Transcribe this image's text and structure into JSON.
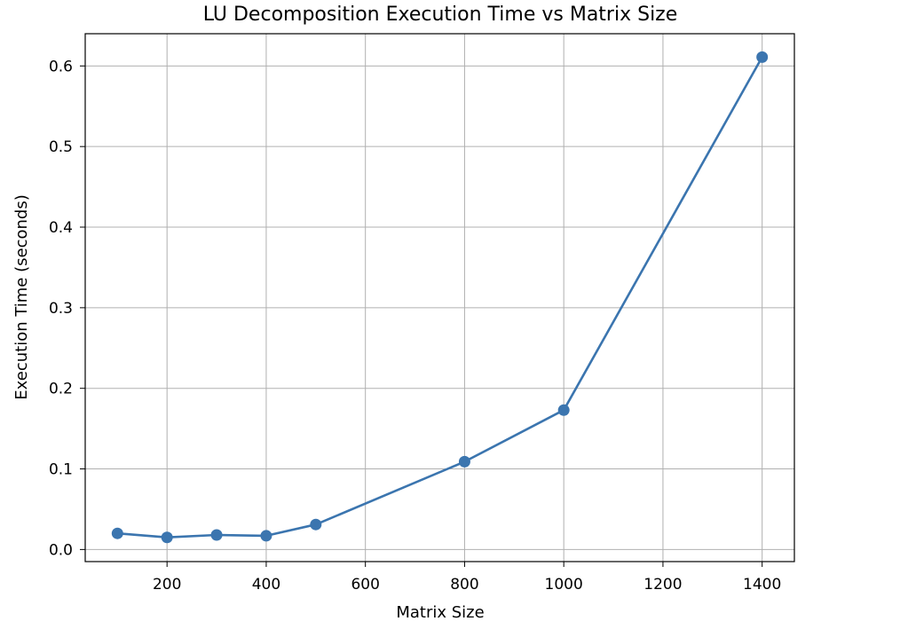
{
  "chart_data": {
    "type": "line",
    "title": "LU Decomposition Execution Time vs Matrix Size",
    "xlabel": "Matrix Size",
    "ylabel": "Execution Time (seconds)",
    "x": [
      100,
      200,
      300,
      400,
      500,
      800,
      1000,
      1400
    ],
    "y": [
      0.02,
      0.015,
      0.018,
      0.017,
      0.031,
      0.109,
      0.173,
      0.611
    ],
    "xlim": [
      35,
      1465
    ],
    "ylim": [
      -0.015,
      0.64
    ],
    "xticks": [
      200,
      400,
      600,
      800,
      1000,
      1200,
      1400
    ],
    "xtick_labels": [
      "200",
      "400",
      "600",
      "800",
      "1000",
      "1200",
      "1400"
    ],
    "yticks": [
      0.0,
      0.1,
      0.2,
      0.3,
      0.4,
      0.5,
      0.6
    ],
    "ytick_labels": [
      "0.0",
      "0.1",
      "0.2",
      "0.3",
      "0.4",
      "0.5",
      "0.6"
    ],
    "grid": true,
    "color": "#3b75af",
    "marker": "circle"
  }
}
